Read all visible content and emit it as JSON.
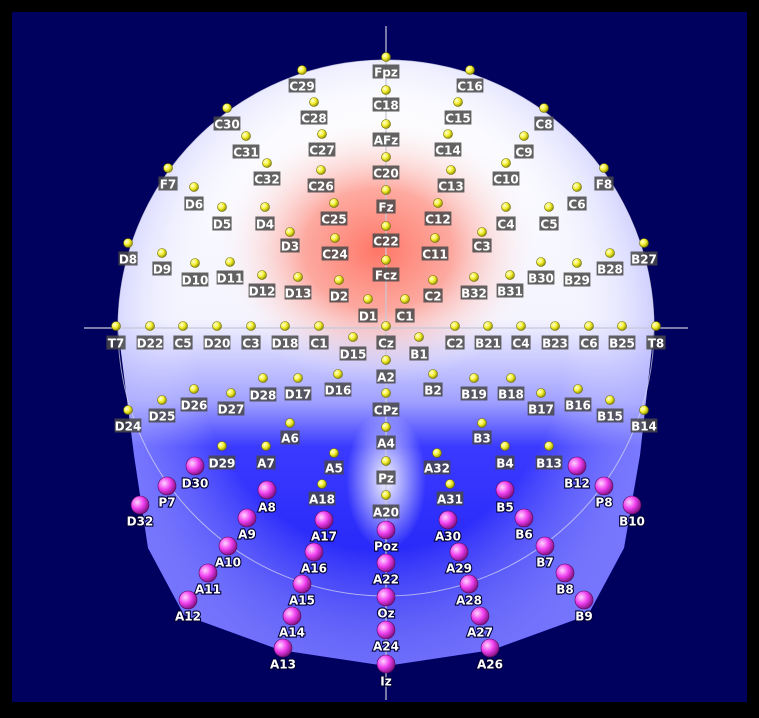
{
  "colors": {
    "background": "#000066",
    "frame": "#000000",
    "warm": "#ff7f6e",
    "mid": "#ffffff",
    "cool": "#1a1aff",
    "sensor_yellow": "#ffff33",
    "sensor_magenta": "#ff33ff",
    "axis_line": "#c8c8d8",
    "label_box": "#4a4a4a",
    "label_text": "#ffffff"
  },
  "electrodes": [
    {
      "id": "Fpz",
      "t": "y"
    },
    {
      "id": "C29",
      "t": "y"
    },
    {
      "id": "C16",
      "t": "y"
    },
    {
      "id": "C18",
      "t": "y"
    },
    {
      "id": "C28",
      "t": "y"
    },
    {
      "id": "C15",
      "t": "y"
    },
    {
      "id": "C30",
      "t": "y"
    },
    {
      "id": "C8",
      "t": "y"
    },
    {
      "id": "AFz",
      "t": "y"
    },
    {
      "id": "C31",
      "t": "y"
    },
    {
      "id": "C27",
      "t": "y"
    },
    {
      "id": "C14",
      "t": "y"
    },
    {
      "id": "C9",
      "t": "y"
    },
    {
      "id": "C32",
      "t": "y"
    },
    {
      "id": "C20",
      "t": "y"
    },
    {
      "id": "C10",
      "t": "y"
    },
    {
      "id": "F7",
      "t": "y"
    },
    {
      "id": "C26",
      "t": "y"
    },
    {
      "id": "C13",
      "t": "y"
    },
    {
      "id": "F8",
      "t": "y"
    },
    {
      "id": "D6",
      "t": "y"
    },
    {
      "id": "C6",
      "t": "y"
    },
    {
      "id": "Fz",
      "t": "y"
    },
    {
      "id": "D5",
      "t": "y"
    },
    {
      "id": "D4",
      "t": "y"
    },
    {
      "id": "C25",
      "t": "y"
    },
    {
      "id": "C12",
      "t": "y"
    },
    {
      "id": "C4",
      "t": "y"
    },
    {
      "id": "C5",
      "t": "y"
    },
    {
      "id": "D3",
      "t": "y"
    },
    {
      "id": "C22",
      "t": "y"
    },
    {
      "id": "C3",
      "t": "y"
    },
    {
      "id": "D8",
      "t": "y"
    },
    {
      "id": "C24",
      "t": "y"
    },
    {
      "id": "C11",
      "t": "y"
    },
    {
      "id": "B27",
      "t": "y"
    },
    {
      "id": "D9",
      "t": "y"
    },
    {
      "id": "D10",
      "t": "y"
    },
    {
      "id": "D11",
      "t": "y"
    },
    {
      "id": "Fcz",
      "t": "y"
    },
    {
      "id": "B28",
      "t": "y"
    },
    {
      "id": "B29",
      "t": "y"
    },
    {
      "id": "B30",
      "t": "y"
    },
    {
      "id": "D12",
      "t": "y"
    },
    {
      "id": "D13",
      "t": "y"
    },
    {
      "id": "B32",
      "t": "y"
    },
    {
      "id": "B31",
      "t": "y"
    },
    {
      "id": "D2",
      "t": "y"
    },
    {
      "id": "C2",
      "t": "y"
    },
    {
      "id": "D1",
      "t": "y"
    },
    {
      "id": "C1",
      "t": "y"
    },
    {
      "id": "T7",
      "t": "y"
    },
    {
      "id": "D22",
      "t": "y"
    },
    {
      "id": "C5",
      "t": "y"
    },
    {
      "id": "D20",
      "t": "y"
    },
    {
      "id": "C3",
      "t": "y"
    },
    {
      "id": "D18",
      "t": "y"
    },
    {
      "id": "C1",
      "t": "y"
    },
    {
      "id": "D15",
      "t": "y"
    },
    {
      "id": "Cz",
      "t": "y"
    },
    {
      "id": "B1",
      "t": "y"
    },
    {
      "id": "C2",
      "t": "y"
    },
    {
      "id": "B21",
      "t": "y"
    },
    {
      "id": "C4",
      "t": "y"
    },
    {
      "id": "B23",
      "t": "y"
    },
    {
      "id": "C6",
      "t": "y"
    },
    {
      "id": "B25",
      "t": "y"
    },
    {
      "id": "T8",
      "t": "y"
    },
    {
      "id": "A2",
      "t": "y"
    },
    {
      "id": "D28",
      "t": "y"
    },
    {
      "id": "D17",
      "t": "y"
    },
    {
      "id": "D16",
      "t": "y"
    },
    {
      "id": "B2",
      "t": "y"
    },
    {
      "id": "B19",
      "t": "y"
    },
    {
      "id": "B18",
      "t": "y"
    },
    {
      "id": "D26",
      "t": "y"
    },
    {
      "id": "D27",
      "t": "y"
    },
    {
      "id": "D25",
      "t": "y"
    },
    {
      "id": "CPz",
      "t": "y"
    },
    {
      "id": "B17",
      "t": "y"
    },
    {
      "id": "B16",
      "t": "y"
    },
    {
      "id": "B15",
      "t": "y"
    },
    {
      "id": "D24",
      "t": "y"
    },
    {
      "id": "B14",
      "t": "y"
    },
    {
      "id": "A6",
      "t": "y"
    },
    {
      "id": "B3",
      "t": "y"
    },
    {
      "id": "A4",
      "t": "y"
    },
    {
      "id": "D29",
      "t": "y"
    },
    {
      "id": "A7",
      "t": "y"
    },
    {
      "id": "A5",
      "t": "y"
    },
    {
      "id": "A32",
      "t": "y"
    },
    {
      "id": "B4",
      "t": "y"
    },
    {
      "id": "B13",
      "t": "y"
    },
    {
      "id": "Pz",
      "t": "y"
    },
    {
      "id": "D30",
      "t": "m"
    },
    {
      "id": "P7",
      "t": "m"
    },
    {
      "id": "A8",
      "t": "m"
    },
    {
      "id": "A18",
      "t": "y"
    },
    {
      "id": "A31",
      "t": "y"
    },
    {
      "id": "B5",
      "t": "m"
    },
    {
      "id": "B12",
      "t": "m"
    },
    {
      "id": "P8",
      "t": "m"
    },
    {
      "id": "D32",
      "t": "m"
    },
    {
      "id": "A20",
      "t": "y"
    },
    {
      "id": "B10",
      "t": "m"
    },
    {
      "id": "A9",
      "t": "m"
    },
    {
      "id": "A17",
      "t": "m"
    },
    {
      "id": "A30",
      "t": "m"
    },
    {
      "id": "B6",
      "t": "m"
    },
    {
      "id": "Poz",
      "t": "m"
    },
    {
      "id": "A10",
      "t": "m"
    },
    {
      "id": "A16",
      "t": "m"
    },
    {
      "id": "A29",
      "t": "m"
    },
    {
      "id": "B7",
      "t": "m"
    },
    {
      "id": "A22",
      "t": "m"
    },
    {
      "id": "A11",
      "t": "m"
    },
    {
      "id": "A28",
      "t": "m"
    },
    {
      "id": "B8",
      "t": "m"
    },
    {
      "id": "A15",
      "t": "m"
    },
    {
      "id": "A12",
      "t": "m"
    },
    {
      "id": "B9",
      "t": "m"
    },
    {
      "id": "Oz",
      "t": "m"
    },
    {
      "id": "A14",
      "t": "m"
    },
    {
      "id": "A27",
      "t": "m"
    },
    {
      "id": "A24",
      "t": "m"
    },
    {
      "id": "A13",
      "t": "m"
    },
    {
      "id": "A26",
      "t": "m"
    },
    {
      "id": "Iz",
      "t": "m"
    }
  ]
}
